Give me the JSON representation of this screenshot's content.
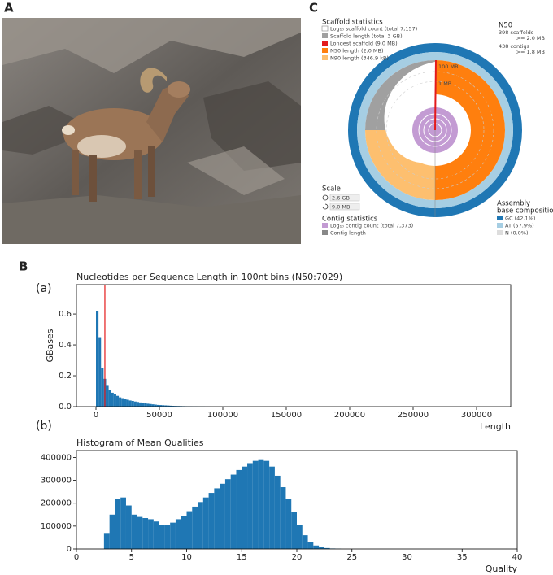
{
  "photo": {
    "panel_label": "A"
  },
  "snail": {
    "panel_label": "C",
    "scaffold_title": "Scaffold statistics",
    "scaffold_items": [
      "Log₁₀ scaffold count (total 7,157)",
      "Scaffold length (total 3 GB)",
      "Longest scaffold (9.0 MB)",
      "N50 length (2.0 MB)",
      "N90 length (346.9 kB)"
    ],
    "n50_title": "N50",
    "n50_lines": [
      "398 scaffolds",
      ">= 2.0 MB",
      "438 contigs",
      ">= 1.8 MB"
    ],
    "scale_title": "Scale",
    "scale_items": [
      "2.6 GB",
      "9.0 MB"
    ],
    "contig_title": "Contig statistics",
    "contig_items": [
      "Log₁₀ contig count (total 7,373)",
      "Contig length"
    ],
    "base_title": [
      "Assembly",
      "base composition"
    ],
    "base_items": [
      "GC (42.1%)",
      "AT (57.9%)",
      "N (0.0%)"
    ],
    "ring_labels": [
      "100 MB",
      "1 MB"
    ]
  },
  "panel_b": {
    "panel_label": "B",
    "sub_labels": [
      "(a)",
      "(b)"
    ]
  },
  "chart_data": [
    {
      "type": "histogram",
      "title": "Nucleotides per Sequence Length in 100nt bins (N50:7029)",
      "xlabel": "Length",
      "ylabel": "GBases",
      "color": "#1f77b4",
      "bins": [
        0,
        2000,
        4000,
        6000,
        8000,
        10000,
        12000,
        14000,
        16000,
        18000,
        20000,
        22000,
        24000,
        26000,
        28000,
        30000,
        32000,
        34000,
        36000,
        38000,
        40000,
        42000,
        44000,
        46000,
        48000,
        50000,
        52000,
        54000,
        56000,
        58000,
        60000,
        62000,
        64000,
        66000,
        68000,
        70000,
        72000,
        74000,
        76000,
        78000,
        80000,
        82000,
        84000,
        86000,
        88000,
        90000
      ],
      "values": [
        0.62,
        0.45,
        0.25,
        0.18,
        0.14,
        0.11,
        0.09,
        0.08,
        0.07,
        0.06,
        0.055,
        0.05,
        0.045,
        0.04,
        0.037,
        0.033,
        0.03,
        0.027,
        0.024,
        0.021,
        0.019,
        0.017,
        0.015,
        0.013,
        0.011,
        0.01,
        0.009,
        0.008,
        0.007,
        0.006,
        0.005,
        0.0045,
        0.004,
        0.0035,
        0.003,
        0.0025,
        0.002,
        0.002,
        0.0015,
        0.0015,
        0.001,
        0.001,
        0.001,
        0.0005,
        0.0005
      ],
      "vline": {
        "x": 7029,
        "color": "#e41a1c"
      },
      "xlim": [
        -15385,
        326923
      ],
      "ylim": [
        0,
        0.79
      ],
      "xticks": [
        0,
        50000,
        100000,
        150000,
        200000,
        250000,
        300000
      ],
      "yticks": [
        {
          "value": 0,
          "label": "0.0"
        },
        0.2,
        0.4,
        0.6
      ],
      "grid": false
    },
    {
      "type": "histogram",
      "title": "Histogram of Mean Qualities",
      "xlabel": "Quality",
      "color": "#1f77b4",
      "bins": [
        2.5,
        3,
        3.5,
        4,
        4.5,
        5,
        5.5,
        6,
        6.5,
        7,
        7.5,
        8,
        8.5,
        9,
        9.5,
        10,
        10.5,
        11,
        11.5,
        12,
        12.5,
        13,
        13.5,
        14,
        14.5,
        15,
        15.5,
        16,
        16.5,
        17,
        17.5,
        18,
        18.5,
        19,
        19.5,
        20,
        20.5,
        21,
        21.5,
        22,
        22.5,
        23,
        23.5,
        24
      ],
      "values": [
        70000,
        150000,
        220000,
        225000,
        190000,
        150000,
        140000,
        135000,
        130000,
        120000,
        105000,
        105000,
        115000,
        130000,
        145000,
        165000,
        185000,
        205000,
        225000,
        245000,
        265000,
        285000,
        305000,
        325000,
        345000,
        360000,
        375000,
        385000,
        392000,
        385000,
        360000,
        320000,
        270000,
        220000,
        160000,
        105000,
        60000,
        30000,
        15000,
        8000,
        4000,
        2000,
        1000
      ],
      "xlim": [
        0,
        40
      ],
      "ylim": [
        0,
        430000
      ],
      "xticks": [
        0,
        5,
        10,
        15,
        20,
        25,
        30,
        35,
        40
      ],
      "yticks": [
        0,
        100000,
        200000,
        300000,
        400000
      ],
      "grid": false
    }
  ]
}
